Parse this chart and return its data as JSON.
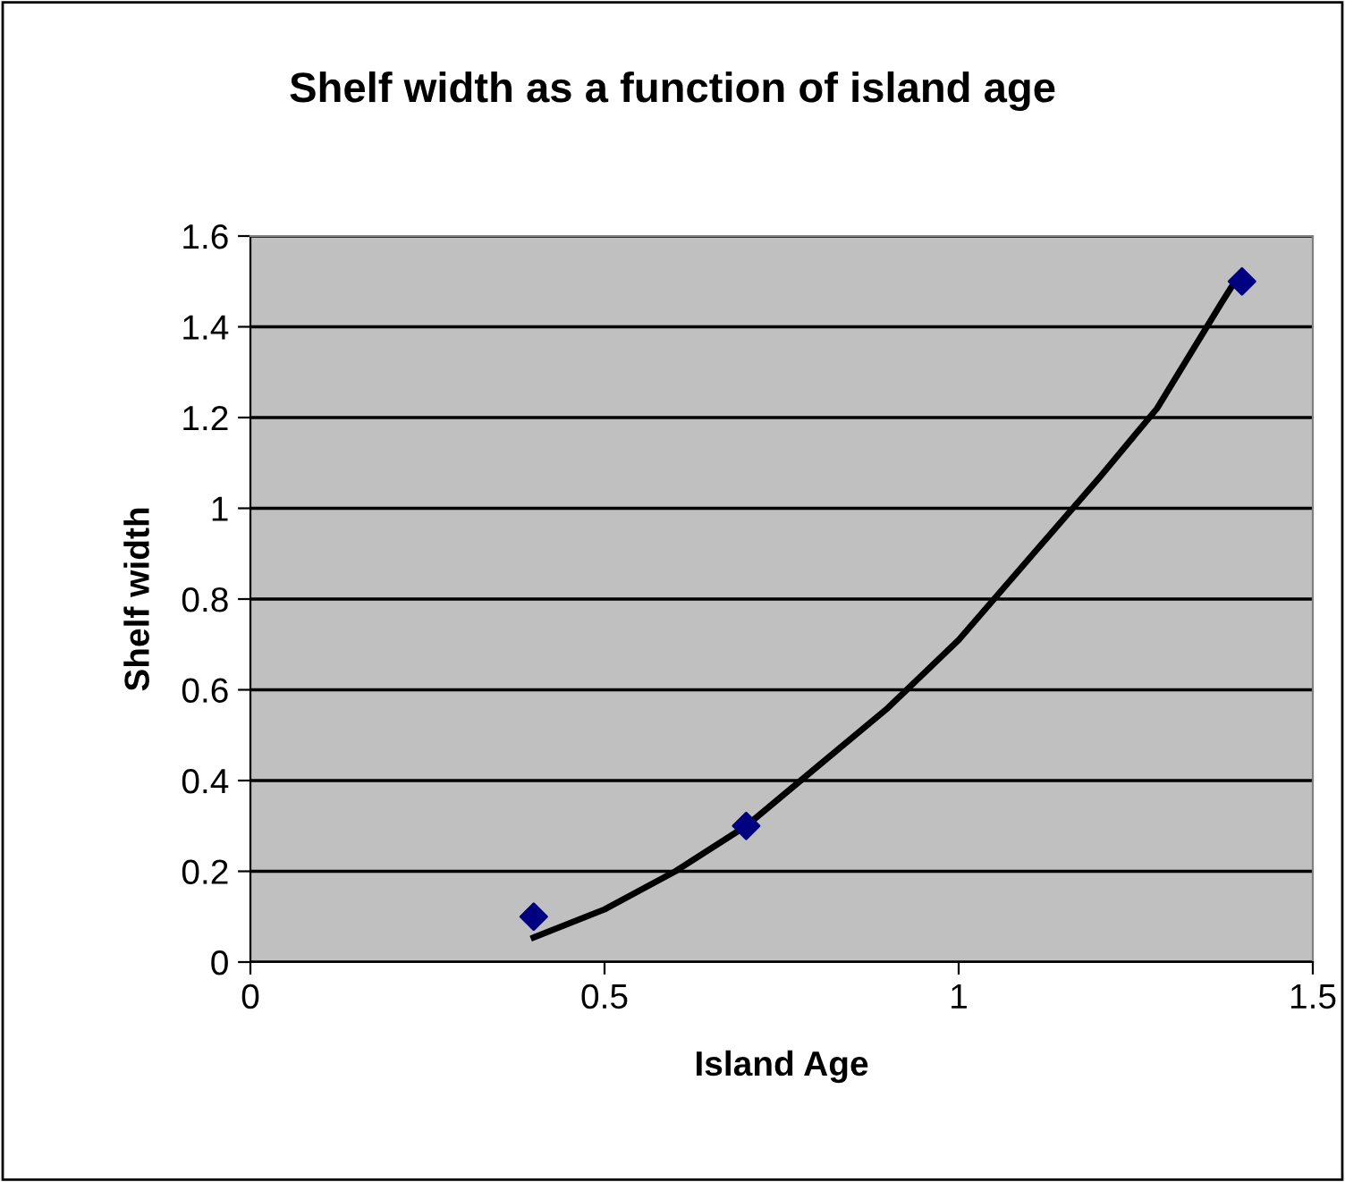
{
  "chart_data": {
    "type": "scatter",
    "title": "Shelf width as a function of island age",
    "xlabel": "Island Age",
    "ylabel": "Shelf width",
    "xlim": [
      0,
      1.5
    ],
    "xticks": [
      0,
      0.5,
      1,
      1.5
    ],
    "ylim": [
      0,
      1.6
    ],
    "yticks": [
      0,
      0.2,
      0.4,
      0.6,
      0.8,
      1,
      1.2,
      1.4,
      1.6
    ],
    "grid": "y",
    "legend": false,
    "series": [
      {
        "color": "#000080",
        "marker": "diamond",
        "x": [
          0.4,
          0.7,
          1.4
        ],
        "values": [
          0.1,
          0.3,
          1.5
        ]
      },
      {
        "type": "line",
        "color": "#000000",
        "marker": "none",
        "line_style": "solid",
        "x": [
          0.4,
          0.5,
          0.6,
          0.7,
          0.8,
          0.9,
          1.0,
          1.1,
          1.2,
          1.28,
          1.37,
          1.39
        ],
        "values": [
          0.054,
          0.116,
          0.2,
          0.3,
          0.43,
          0.56,
          0.71,
          0.89,
          1.07,
          1.22,
          1.45,
          1.5
        ]
      }
    ]
  }
}
